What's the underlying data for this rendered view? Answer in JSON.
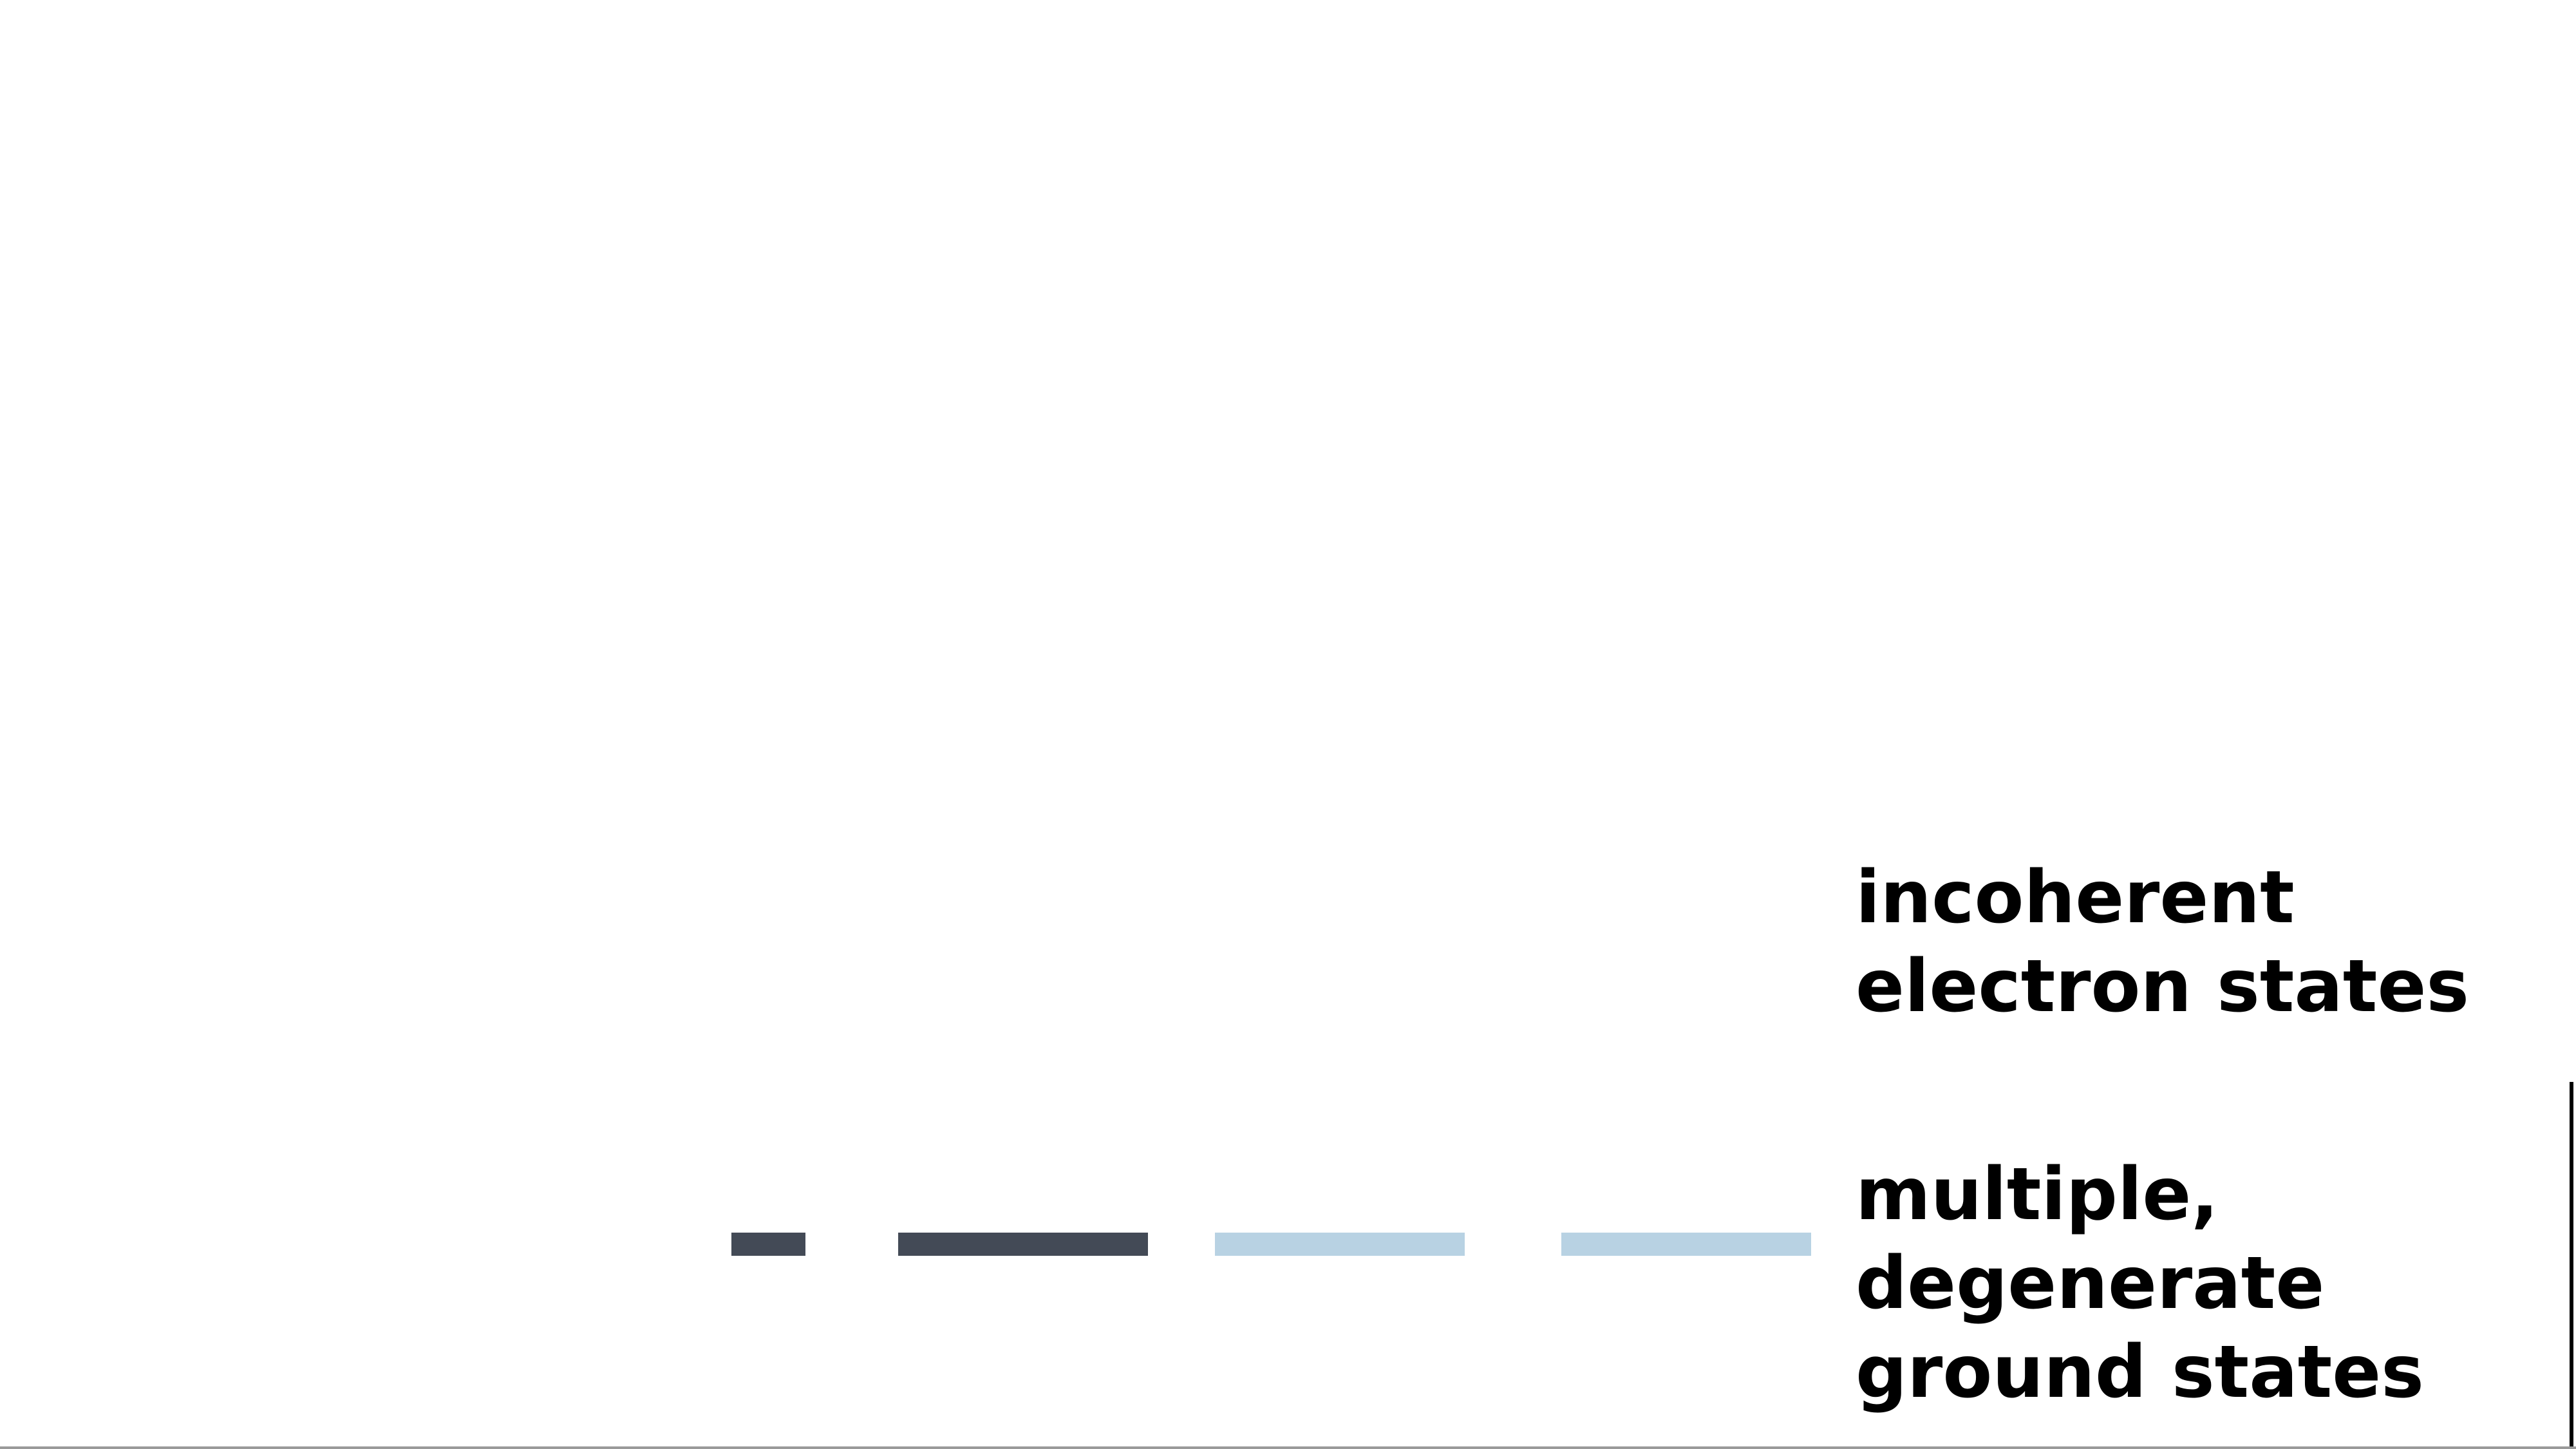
{
  "colors": {
    "occupied_level": "#434a56",
    "empty_level": "#b8d2e3",
    "text": "#000000",
    "background": "#ffffff"
  },
  "labels": {
    "incoherent": "incoherent\nelectron states",
    "ground": "multiple,\ndegenerate\nground states"
  }
}
